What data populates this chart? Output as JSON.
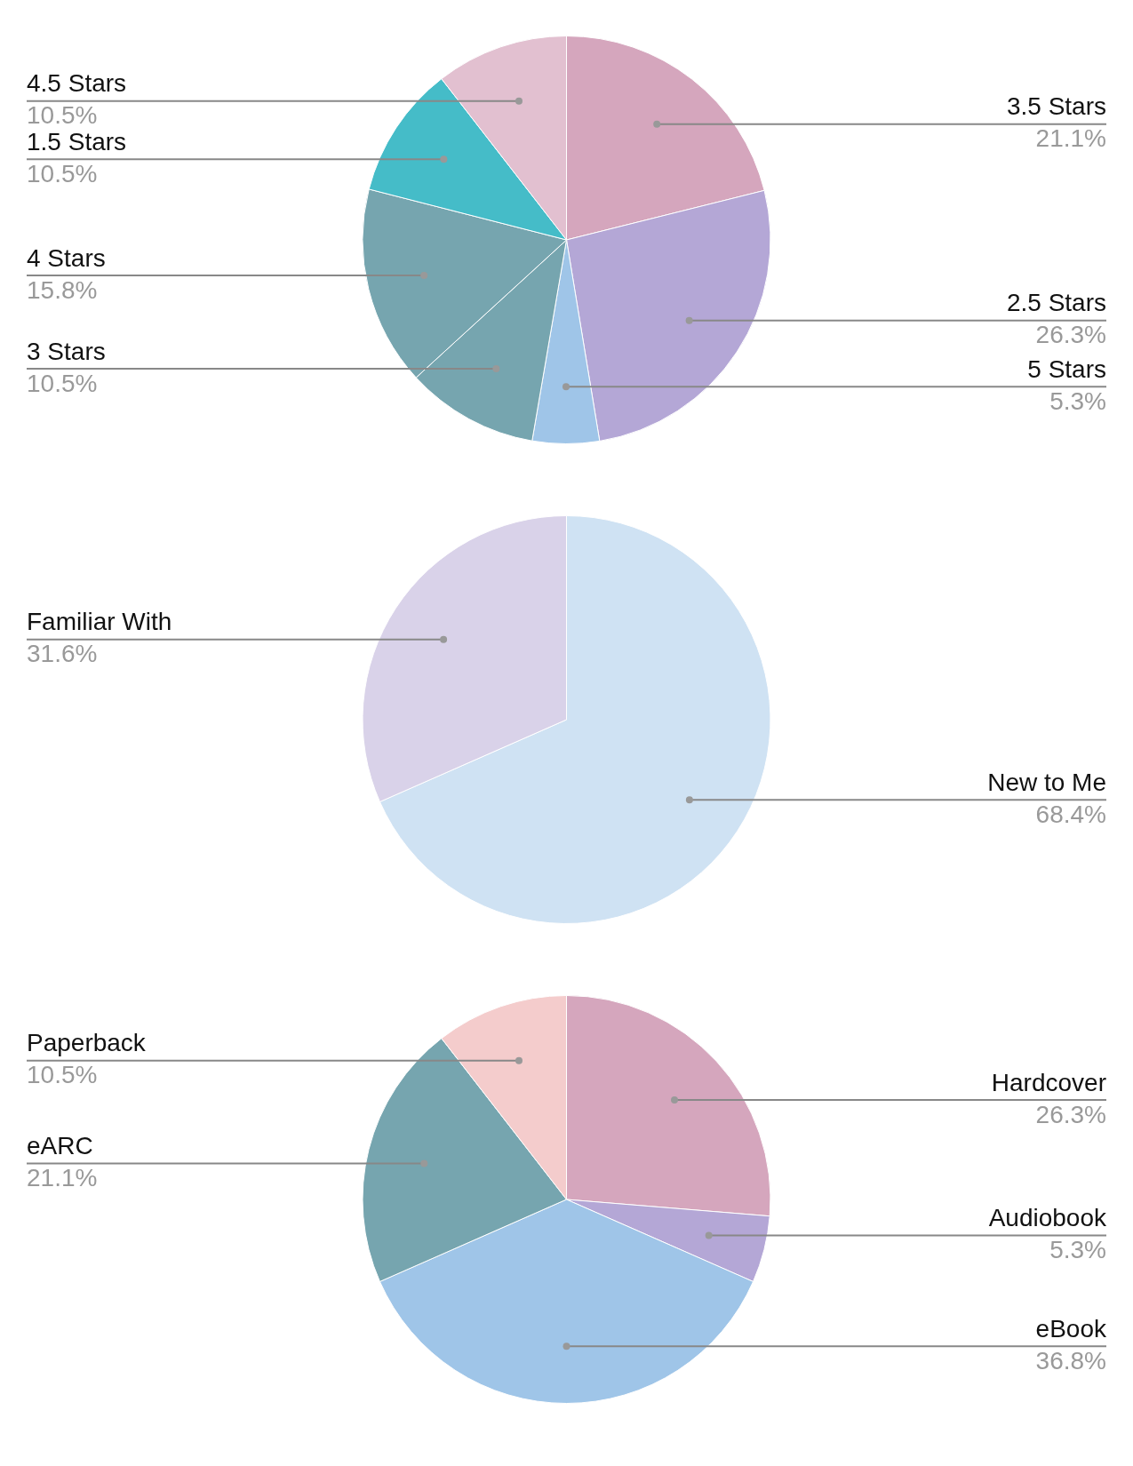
{
  "chart_data": [
    {
      "type": "pie",
      "categories": [
        "3.5 Stars",
        "2.5 Stars",
        "5 Stars",
        "3 Stars",
        "4 Stars",
        "1.5 Stars",
        "4.5 Stars"
      ],
      "values": [
        21.1,
        26.3,
        5.3,
        10.5,
        15.8,
        10.5,
        10.5
      ],
      "colors": [
        "#d5a6bd",
        "#b4a7d6",
        "#9fc5e8",
        "#76a5af",
        "#76a5af",
        "#45bcc8",
        "#e2c0d0"
      ],
      "value_labels": [
        "21.1%",
        "26.3%",
        "5.3%",
        "10.5%",
        "15.8%",
        "10.5%",
        "10.5%"
      ]
    },
    {
      "type": "pie",
      "categories": [
        "New to Me",
        "Familiar With"
      ],
      "values": [
        68.4,
        31.6
      ],
      "colors": [
        "#cfe2f3",
        "#d9d2e9"
      ],
      "value_labels": [
        "68.4%",
        "31.6%"
      ]
    },
    {
      "type": "pie",
      "categories": [
        "Hardcover",
        "Audiobook",
        "eBook",
        "eARC",
        "Paperback"
      ],
      "values": [
        26.3,
        5.3,
        36.8,
        21.1,
        10.5
      ],
      "colors": [
        "#d5a6bd",
        "#b4a7d6",
        "#9fc5e8",
        "#76a5af",
        "#f4cccc"
      ],
      "value_labels": [
        "26.3%",
        "5.3%",
        "36.8%",
        "21.1%",
        "10.5%"
      ]
    }
  ]
}
